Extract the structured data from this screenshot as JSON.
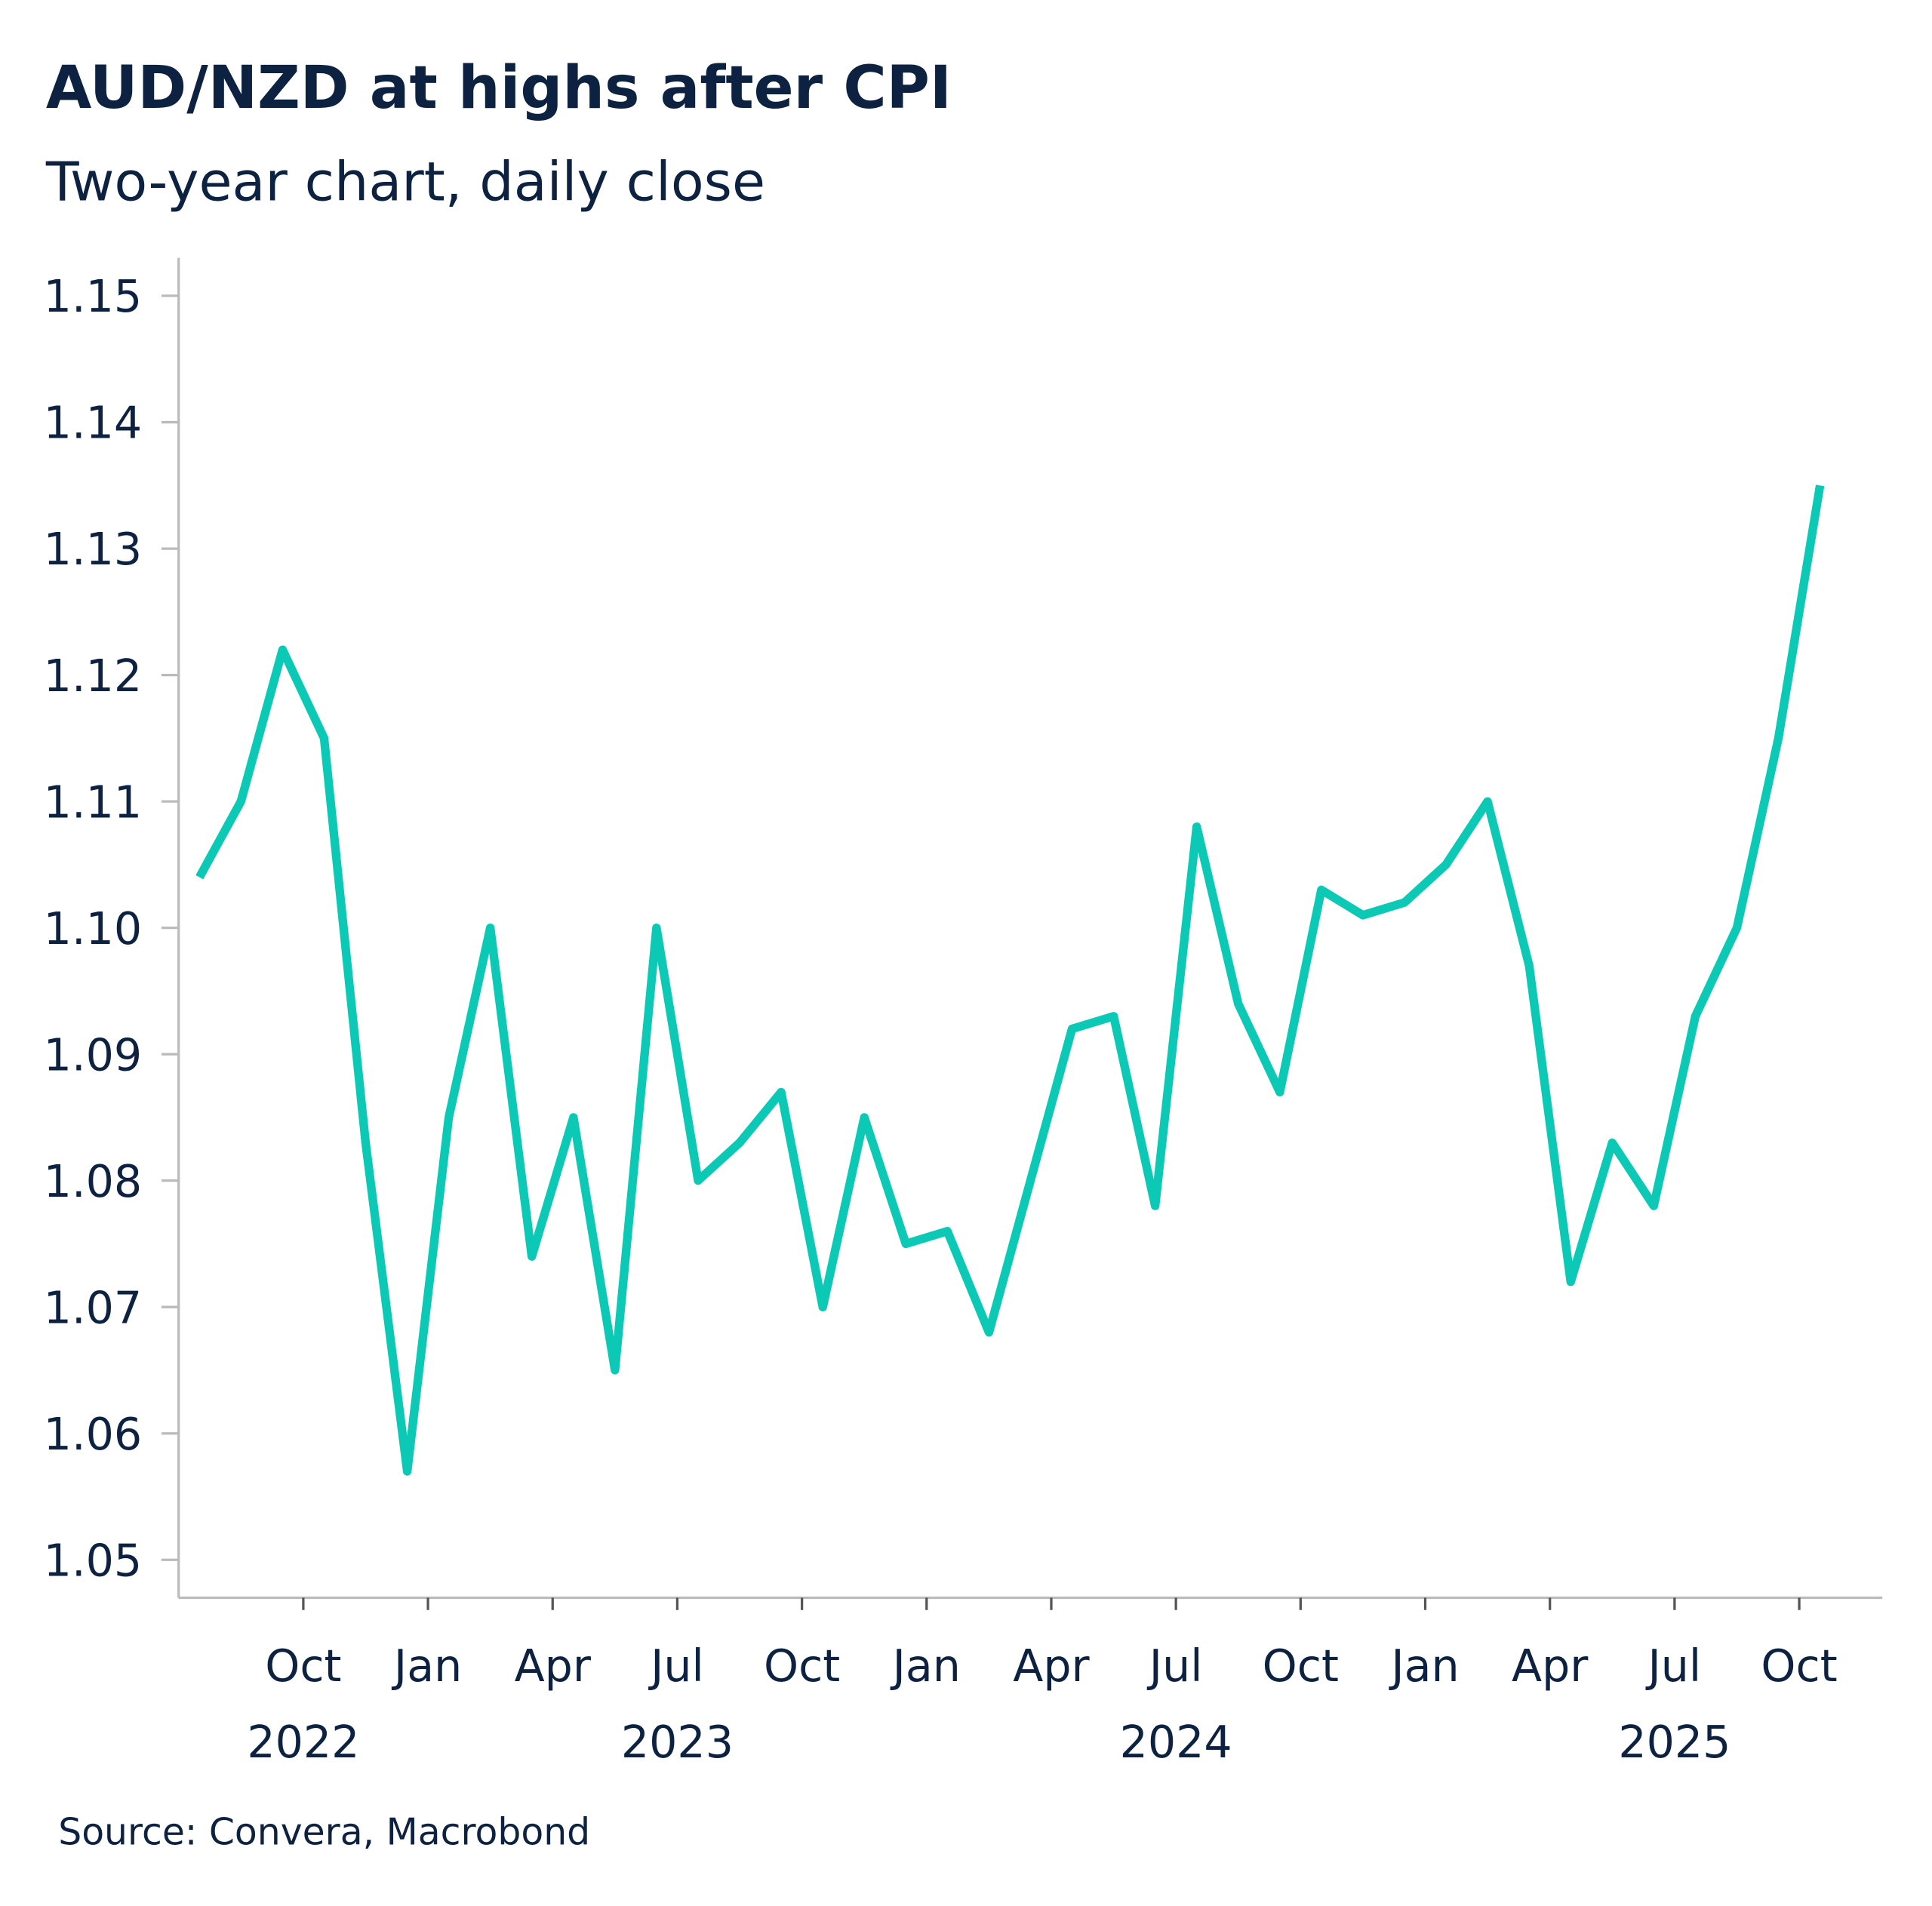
{
  "chart_data": {
    "type": "line",
    "title": "AUD/NZD at highs after CPI",
    "subtitle": "Two-year chart, daily close",
    "source": "Source: Convera, Macrobond",
    "x": [
      "2022-07",
      "2022-08",
      "2022-09",
      "2022-10",
      "2022-11",
      "2022-12",
      "2023-01",
      "2023-02",
      "2023-03",
      "2023-04",
      "2023-05",
      "2023-06",
      "2023-07",
      "2023-08",
      "2023-09",
      "2023-10",
      "2023-11",
      "2023-12",
      "2024-01",
      "2024-02",
      "2024-03",
      "2024-04",
      "2024-05",
      "2024-06",
      "2024-07",
      "2024-08",
      "2024-09",
      "2024-10",
      "2024-11",
      "2024-12",
      "2025-01",
      "2025-02",
      "2025-03",
      "2025-04",
      "2025-05",
      "2025-06",
      "2025-07",
      "2025-08",
      "2025-09",
      "2025-10"
    ],
    "series": [
      {
        "name": "AUD/NZD",
        "color": "#0cc9b5",
        "values": [
          1.104,
          1.11,
          1.122,
          1.115,
          1.083,
          1.057,
          1.085,
          1.1,
          1.074,
          1.085,
          1.065,
          1.1,
          1.08,
          1.083,
          1.087,
          1.07,
          1.085,
          1.075,
          1.076,
          1.068,
          1.08,
          1.092,
          1.093,
          1.078,
          1.108,
          1.094,
          1.087,
          1.103,
          1.101,
          1.102,
          1.105,
          1.11,
          1.097,
          1.072,
          1.083,
          1.078,
          1.093,
          1.1,
          1.115,
          1.135
        ]
      }
    ],
    "xlim": [
      "2022-07",
      "2025-12"
    ],
    "xticks": [
      {
        "value": "2022-10",
        "label": "Oct"
      },
      {
        "value": "2023-01",
        "label": "Jan"
      },
      {
        "value": "2023-04",
        "label": "Apr"
      },
      {
        "value": "2023-07",
        "label": "Jul"
      },
      {
        "value": "2023-10",
        "label": "Oct"
      },
      {
        "value": "2024-01",
        "label": "Jan"
      },
      {
        "value": "2024-04",
        "label": "Apr"
      },
      {
        "value": "2024-07",
        "label": "Jul"
      },
      {
        "value": "2024-10",
        "label": "Oct"
      },
      {
        "value": "2025-01",
        "label": "Jan"
      },
      {
        "value": "2025-04",
        "label": "Apr"
      },
      {
        "value": "2025-07",
        "label": "Jul"
      },
      {
        "value": "2025-10",
        "label": "Oct"
      }
    ],
    "year_labels": [
      {
        "value": "2022-10",
        "label": "2022"
      },
      {
        "value": "2023-07",
        "label": "2023"
      },
      {
        "value": "2024-07",
        "label": "2024"
      },
      {
        "value": "2025-07",
        "label": "2025"
      }
    ],
    "ylim": [
      1.047,
      1.153
    ],
    "yticks": [
      1.05,
      1.06,
      1.07,
      1.08,
      1.09,
      {
        "value": 1.1,
        "label": "1.10"
      },
      1.11,
      1.12,
      1.13,
      1.14,
      1.15
    ],
    "grid": false
  }
}
